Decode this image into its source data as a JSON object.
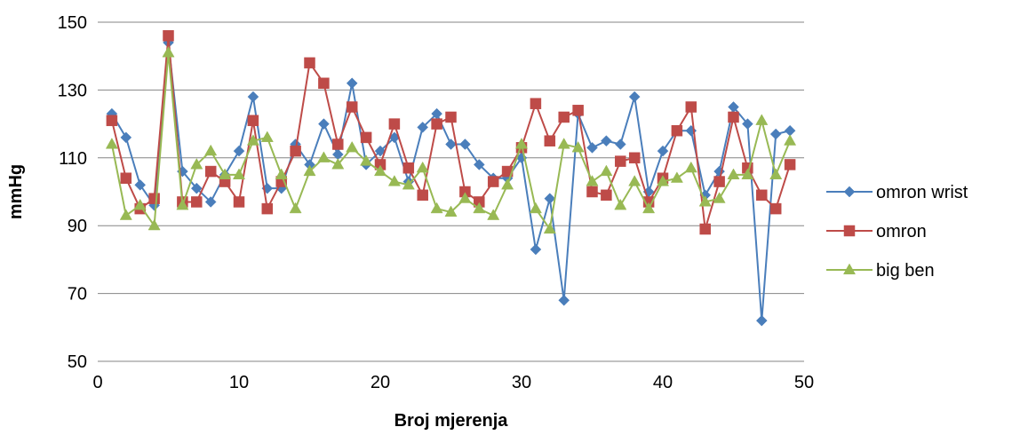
{
  "chart_data": {
    "type": "line",
    "title": "",
    "xlabel": "Broj mjerenja",
    "ylabel": "mmHg",
    "xlim": [
      0,
      50
    ],
    "ylim": [
      50,
      150
    ],
    "xticks": [
      0,
      10,
      20,
      30,
      40,
      50
    ],
    "yticks": [
      50,
      70,
      90,
      110,
      130,
      150
    ],
    "grid": "horizontal",
    "legend_position": "right",
    "x": [
      1,
      2,
      3,
      4,
      5,
      6,
      7,
      8,
      9,
      10,
      11,
      12,
      13,
      14,
      15,
      16,
      17,
      18,
      19,
      20,
      21,
      22,
      23,
      24,
      25,
      26,
      27,
      28,
      29,
      30,
      31,
      32,
      33,
      34,
      35,
      36,
      37,
      38,
      39,
      40,
      41,
      42,
      43,
      44,
      45,
      46,
      47,
      48,
      49
    ],
    "series": [
      {
        "name": "omron wrist",
        "color": "#4a7ebb",
        "marker": "diamond",
        "values": [
          123,
          116,
          102,
          96,
          144,
          106,
          101,
          97,
          105,
          112,
          128,
          101,
          101,
          114,
          108,
          120,
          111,
          132,
          108,
          112,
          116,
          103,
          119,
          123,
          114,
          114,
          108,
          104,
          104,
          110,
          83,
          98,
          68,
          123,
          113,
          115,
          114,
          128,
          100,
          112,
          118,
          118,
          99,
          106,
          125,
          120,
          62,
          117,
          118
        ]
      },
      {
        "name": "omron",
        "color": "#be4b48",
        "marker": "square",
        "values": [
          121,
          104,
          95,
          98,
          146,
          97,
          97,
          106,
          103,
          97,
          121,
          95,
          103,
          112,
          138,
          132,
          114,
          125,
          116,
          108,
          120,
          107,
          99,
          120,
          122,
          100,
          97,
          103,
          106,
          113,
          126,
          115,
          122,
          124,
          100,
          99,
          109,
          110,
          97,
          104,
          118,
          125,
          89,
          103,
          122,
          107,
          99,
          95,
          108
        ]
      },
      {
        "name": "big ben",
        "color": "#98b954",
        "marker": "triangle",
        "values": [
          114,
          93,
          96,
          90,
          141,
          96,
          108,
          112,
          105,
          105,
          115,
          116,
          105,
          95,
          106,
          110,
          108,
          113,
          109,
          106,
          103,
          102,
          107,
          95,
          94,
          98,
          95,
          93,
          102,
          114,
          95,
          89,
          114,
          113,
          103,
          106,
          96,
          103,
          95,
          103,
          104,
          107,
          97,
          98,
          105,
          105,
          121,
          105,
          115
        ]
      }
    ]
  }
}
